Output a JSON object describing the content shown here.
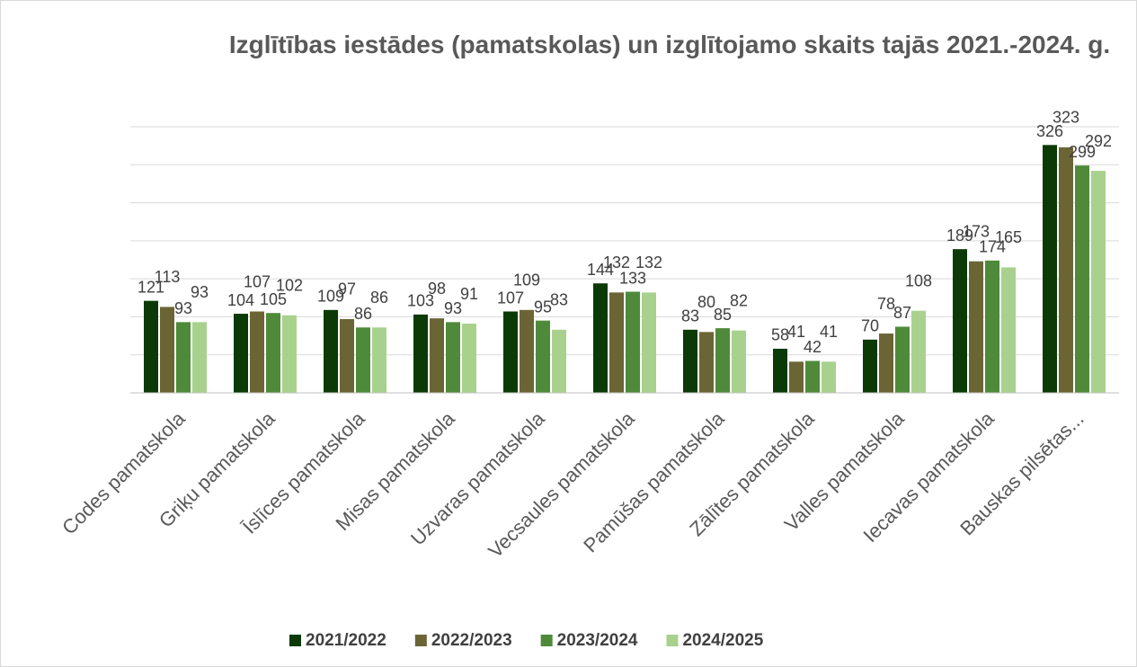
{
  "chart_data": {
    "type": "bar",
    "title": "Izglītības iestādes (pamatskolas) un izglītojamo skaits tajās 2021.-2024. g.",
    "categories": [
      "Codes pamatskola",
      "Griķu pamatskola",
      "Īslīces pamatskola",
      "Misas pamatskola",
      "Uzvaras pamatskola",
      "Vecsaules pamatskola",
      "Pamūšas pamatskola",
      "Zālītes pamatskola",
      "Valles pamatskola",
      "Iecavas pamatskola",
      "Bauskas pilsētas..."
    ],
    "series": [
      {
        "name": "2021/2022",
        "color": "#0b3a06",
        "values": [
          121,
          104,
          109,
          103,
          107,
          144,
          83,
          58,
          70,
          189,
          326
        ]
      },
      {
        "name": "2022/2023",
        "color": "#6b6535",
        "values": [
          113,
          107,
          97,
          98,
          109,
          132,
          80,
          41,
          78,
          173,
          323
        ]
      },
      {
        "name": "2023/2024",
        "color": "#4f8a3a",
        "values": [
          93,
          105,
          86,
          93,
          95,
          133,
          85,
          42,
          87,
          174,
          299
        ]
      },
      {
        "name": "2024/2025",
        "color": "#a9d18e",
        "values": [
          93,
          102,
          86,
          91,
          83,
          132,
          82,
          41,
          108,
          165,
          292
        ]
      }
    ],
    "ylim": [
      0,
      350
    ],
    "yticks": [
      0,
      50,
      100,
      150,
      200,
      250,
      300,
      350
    ],
    "grid": true,
    "legend": "bottom"
  }
}
